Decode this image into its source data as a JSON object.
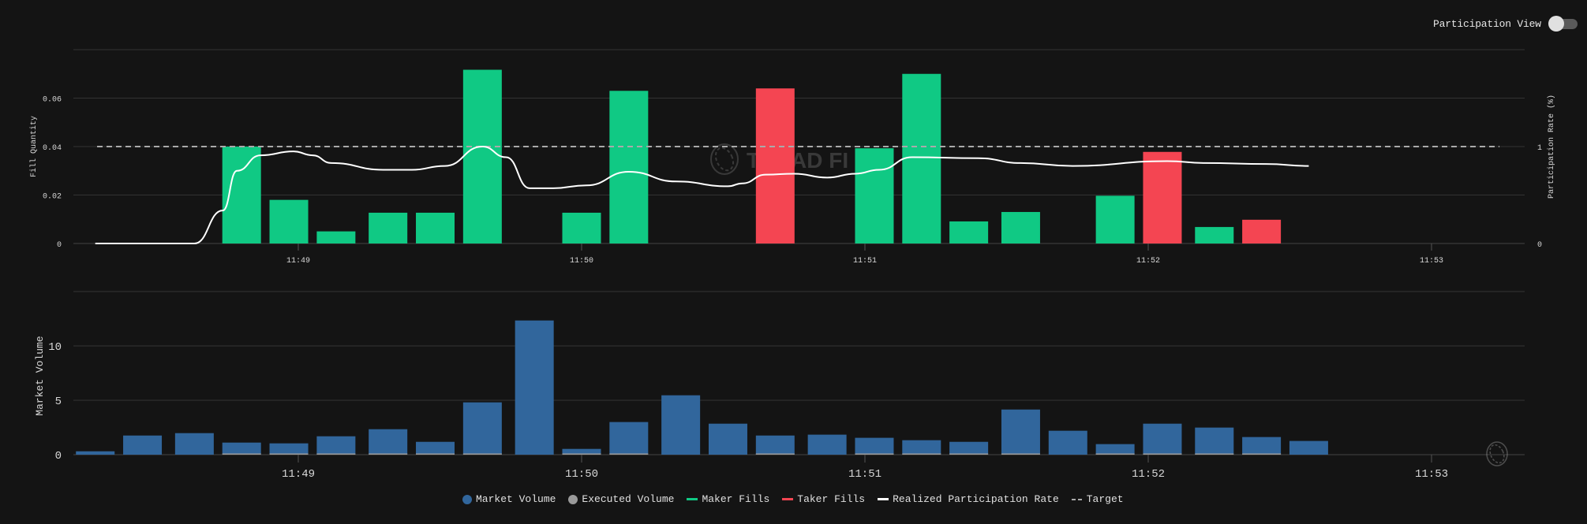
{
  "toggle": {
    "label": "Participation View",
    "on": false
  },
  "colors": {
    "background": "#141414",
    "maker": "#10c984",
    "taker": "#f44552",
    "market_volume": "#31669c",
    "executed_volume": "#9a9a9a",
    "participation": "#ffffff",
    "target": "#aaaaaa",
    "grid": "#333333"
  },
  "watermark": "TREAD FI",
  "legend": [
    {
      "label": "Market Volume",
      "marker": "dot",
      "color": "#31669c"
    },
    {
      "label": "Executed Volume",
      "marker": "dot",
      "color": "#9a9a9a"
    },
    {
      "label": "Maker Fills",
      "marker": "line",
      "color": "#10c984"
    },
    {
      "label": "Taker Fills",
      "marker": "line",
      "color": "#f44552"
    },
    {
      "label": "Realized Participation Rate",
      "marker": "line",
      "color": "#ffffff"
    },
    {
      "label": "Target",
      "marker": "dash",
      "color": "#aaaaaa"
    }
  ],
  "chart_data": [
    {
      "type": "bar",
      "ylabel": "Fill Quantity",
      "y2label": "Participation Rate (%)",
      "ylim": [
        0,
        0.08
      ],
      "yticks": [
        "0",
        "0.02",
        "0.04",
        "0.06"
      ],
      "y2lim": [
        0,
        2
      ],
      "y2ticks": [
        "0",
        "1"
      ],
      "xticks": [
        "11:49",
        "11:50",
        "11:51",
        "11:52",
        "11:53"
      ],
      "xlim": [
        "11:48:09",
        "11:53:20"
      ],
      "grid": true,
      "fills": [
        {
          "time": "11:48:48",
          "qty": 0.04,
          "side": "maker"
        },
        {
          "time": "11:48:58",
          "qty": 0.018,
          "side": "maker"
        },
        {
          "time": "11:49:08",
          "qty": 0.005,
          "side": "maker"
        },
        {
          "time": "11:49:19",
          "qty": 0.0127,
          "side": "maker"
        },
        {
          "time": "11:49:29",
          "qty": 0.0127,
          "side": "maker"
        },
        {
          "time": "11:49:39",
          "qty": 0.0717,
          "side": "maker"
        },
        {
          "time": "11:50:00",
          "qty": 0.0127,
          "side": "maker"
        },
        {
          "time": "11:50:10",
          "qty": 0.063,
          "side": "maker"
        },
        {
          "time": "11:50:41",
          "qty": 0.064,
          "side": "taker"
        },
        {
          "time": "11:51:02",
          "qty": 0.0393,
          "side": "maker"
        },
        {
          "time": "11:51:12",
          "qty": 0.07,
          "side": "maker"
        },
        {
          "time": "11:51:22",
          "qty": 0.0091,
          "side": "maker"
        },
        {
          "time": "11:51:33",
          "qty": 0.013,
          "side": "maker"
        },
        {
          "time": "11:51:53",
          "qty": 0.0197,
          "side": "maker"
        },
        {
          "time": "11:52:03",
          "qty": 0.0378,
          "side": "taker"
        },
        {
          "time": "11:52:14",
          "qty": 0.0068,
          "side": "maker"
        },
        {
          "time": "11:52:24",
          "qty": 0.0098,
          "side": "taker"
        }
      ],
      "participation_rate": [
        [
          "11:48:17",
          0
        ],
        [
          "11:48:38",
          0
        ],
        [
          "11:48:44",
          0.34
        ],
        [
          "11:48:47",
          0.75
        ],
        [
          "11:48:52",
          0.91
        ],
        [
          "11:48:59",
          0.95
        ],
        [
          "11:49:03",
          0.91
        ],
        [
          "11:49:07",
          0.83
        ],
        [
          "11:49:18",
          0.76
        ],
        [
          "11:49:24",
          0.76
        ],
        [
          "11:49:31",
          0.8
        ],
        [
          "11:49:39",
          1.0
        ],
        [
          "11:49:44",
          0.89
        ],
        [
          "11:49:49",
          0.57
        ],
        [
          "11:49:54",
          0.57
        ],
        [
          "11:50:01",
          0.6
        ],
        [
          "11:50:10",
          0.74
        ],
        [
          "11:50:20",
          0.64
        ],
        [
          "11:50:31",
          0.59
        ],
        [
          "11:50:34",
          0.62
        ],
        [
          "11:50:39",
          0.71
        ],
        [
          "11:50:45",
          0.72
        ],
        [
          "11:50:52",
          0.68
        ],
        [
          "11:50:58",
          0.72
        ],
        [
          "11:51:03",
          0.76
        ],
        [
          "11:51:10",
          0.89
        ],
        [
          "11:51:24",
          0.88
        ],
        [
          "11:51:33",
          0.83
        ],
        [
          "11:51:44",
          0.8
        ],
        [
          "11:52:04",
          0.85
        ],
        [
          "11:52:12",
          0.83
        ],
        [
          "11:52:25",
          0.82
        ],
        [
          "11:52:34",
          0.8
        ]
      ],
      "target": 1
    },
    {
      "type": "bar",
      "ylabel": "Market Volume",
      "ylim": [
        0,
        15
      ],
      "yticks": [
        "0",
        "5",
        "10"
      ],
      "xticks": [
        "11:49",
        "11:50",
        "11:51",
        "11:52",
        "11:53"
      ],
      "grid": true,
      "times": [
        "11:48:17",
        "11:48:27",
        "11:48:38",
        "11:48:48",
        "11:48:58",
        "11:49:08",
        "11:49:19",
        "11:49:29",
        "11:49:39",
        "11:49:50",
        "11:50:00",
        "11:50:10",
        "11:50:21",
        "11:50:31",
        "11:50:41",
        "11:50:52",
        "11:51:02",
        "11:51:12",
        "11:51:22",
        "11:51:33",
        "11:51:43",
        "11:51:53",
        "11:52:03",
        "11:52:14",
        "11:52:24",
        "11:52:34"
      ],
      "market_volume": [
        0.31,
        1.76,
        1.98,
        1.11,
        1.04,
        1.69,
        2.34,
        1.18,
        4.81,
        12.34,
        0.53,
        3.0,
        5.46,
        2.85,
        1.76,
        1.84,
        1.55,
        1.33,
        1.18,
        4.15,
        2.2,
        0.97,
        2.85,
        2.49,
        1.62,
        1.26
      ],
      "executed_volume": [
        0,
        0,
        0,
        0.04,
        0.018,
        0.005,
        0.0127,
        0.0127,
        0.0717,
        0,
        0.0127,
        0.063,
        0,
        0,
        0.064,
        0,
        0.0393,
        0.07,
        0.0091,
        0.013,
        0,
        0.0197,
        0.0378,
        0.0068,
        0.0098,
        0
      ]
    }
  ]
}
